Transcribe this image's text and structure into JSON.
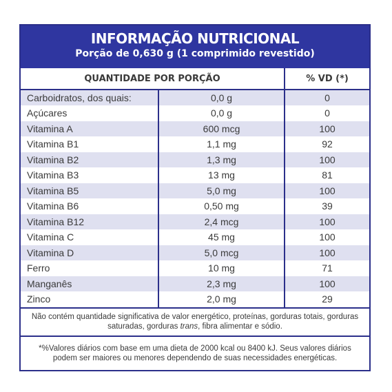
{
  "header": {
    "title": "INFORMAÇÃO NUTRICIONAL",
    "subtitle": "Porção de 0,630 g (1 comprimido revestido)"
  },
  "table": {
    "col_quantity": "QUANTIDADE POR PORÇÃO",
    "col_vd": "% VD (*)",
    "rows": [
      {
        "name": "Carboidratos, dos quais:",
        "qty": "0,0 g",
        "vd": "0"
      },
      {
        "name": "Açúcares",
        "qty": "0,0 g",
        "vd": "0"
      },
      {
        "name": "Vitamina A",
        "qty": "600 mcg",
        "vd": "100"
      },
      {
        "name": "Vitamina B1",
        "qty": "1,1 mg",
        "vd": "92"
      },
      {
        "name": "Vitamina B2",
        "qty": "1,3 mg",
        "vd": "100"
      },
      {
        "name": "Vitamina B3",
        "qty": "13 mg",
        "vd": "81"
      },
      {
        "name": "Vitamina B5",
        "qty": "5,0 mg",
        "vd": "100"
      },
      {
        "name": "Vitamina B6",
        "qty": "0,50 mg",
        "vd": "39"
      },
      {
        "name": "Vitamina B12",
        "qty": "2,4 mcg",
        "vd": "100"
      },
      {
        "name": "Vitamina C",
        "qty": "45 mg",
        "vd": "100"
      },
      {
        "name": "Vitamina D",
        "qty": "5,0 mcg",
        "vd": "100"
      },
      {
        "name": "Ferro",
        "qty": "10 mg",
        "vd": "71"
      },
      {
        "name": "Manganês",
        "qty": "2,3 mg",
        "vd": "100"
      },
      {
        "name": "Zinco",
        "qty": "2,0 mg",
        "vd": "29"
      }
    ]
  },
  "notes": {
    "not_significant_before": "Não contém quantidade significativa de valor energético, proteínas, gorduras totais, gorduras saturadas, gorduras ",
    "not_significant_italic": "trans",
    "not_significant_after": ", fibra alimentar e sódio.",
    "daily_values": "*%Valores diários com base em uma dieta de 2000 kcal ou 8400 kJ. Seus valores diários podem ser maiores ou menores dependendo de suas necessidades energéticas."
  },
  "colors": {
    "header_bg": "#2f36a0",
    "border": "#2b2f8a",
    "row_shade": "#dfe0f0"
  }
}
